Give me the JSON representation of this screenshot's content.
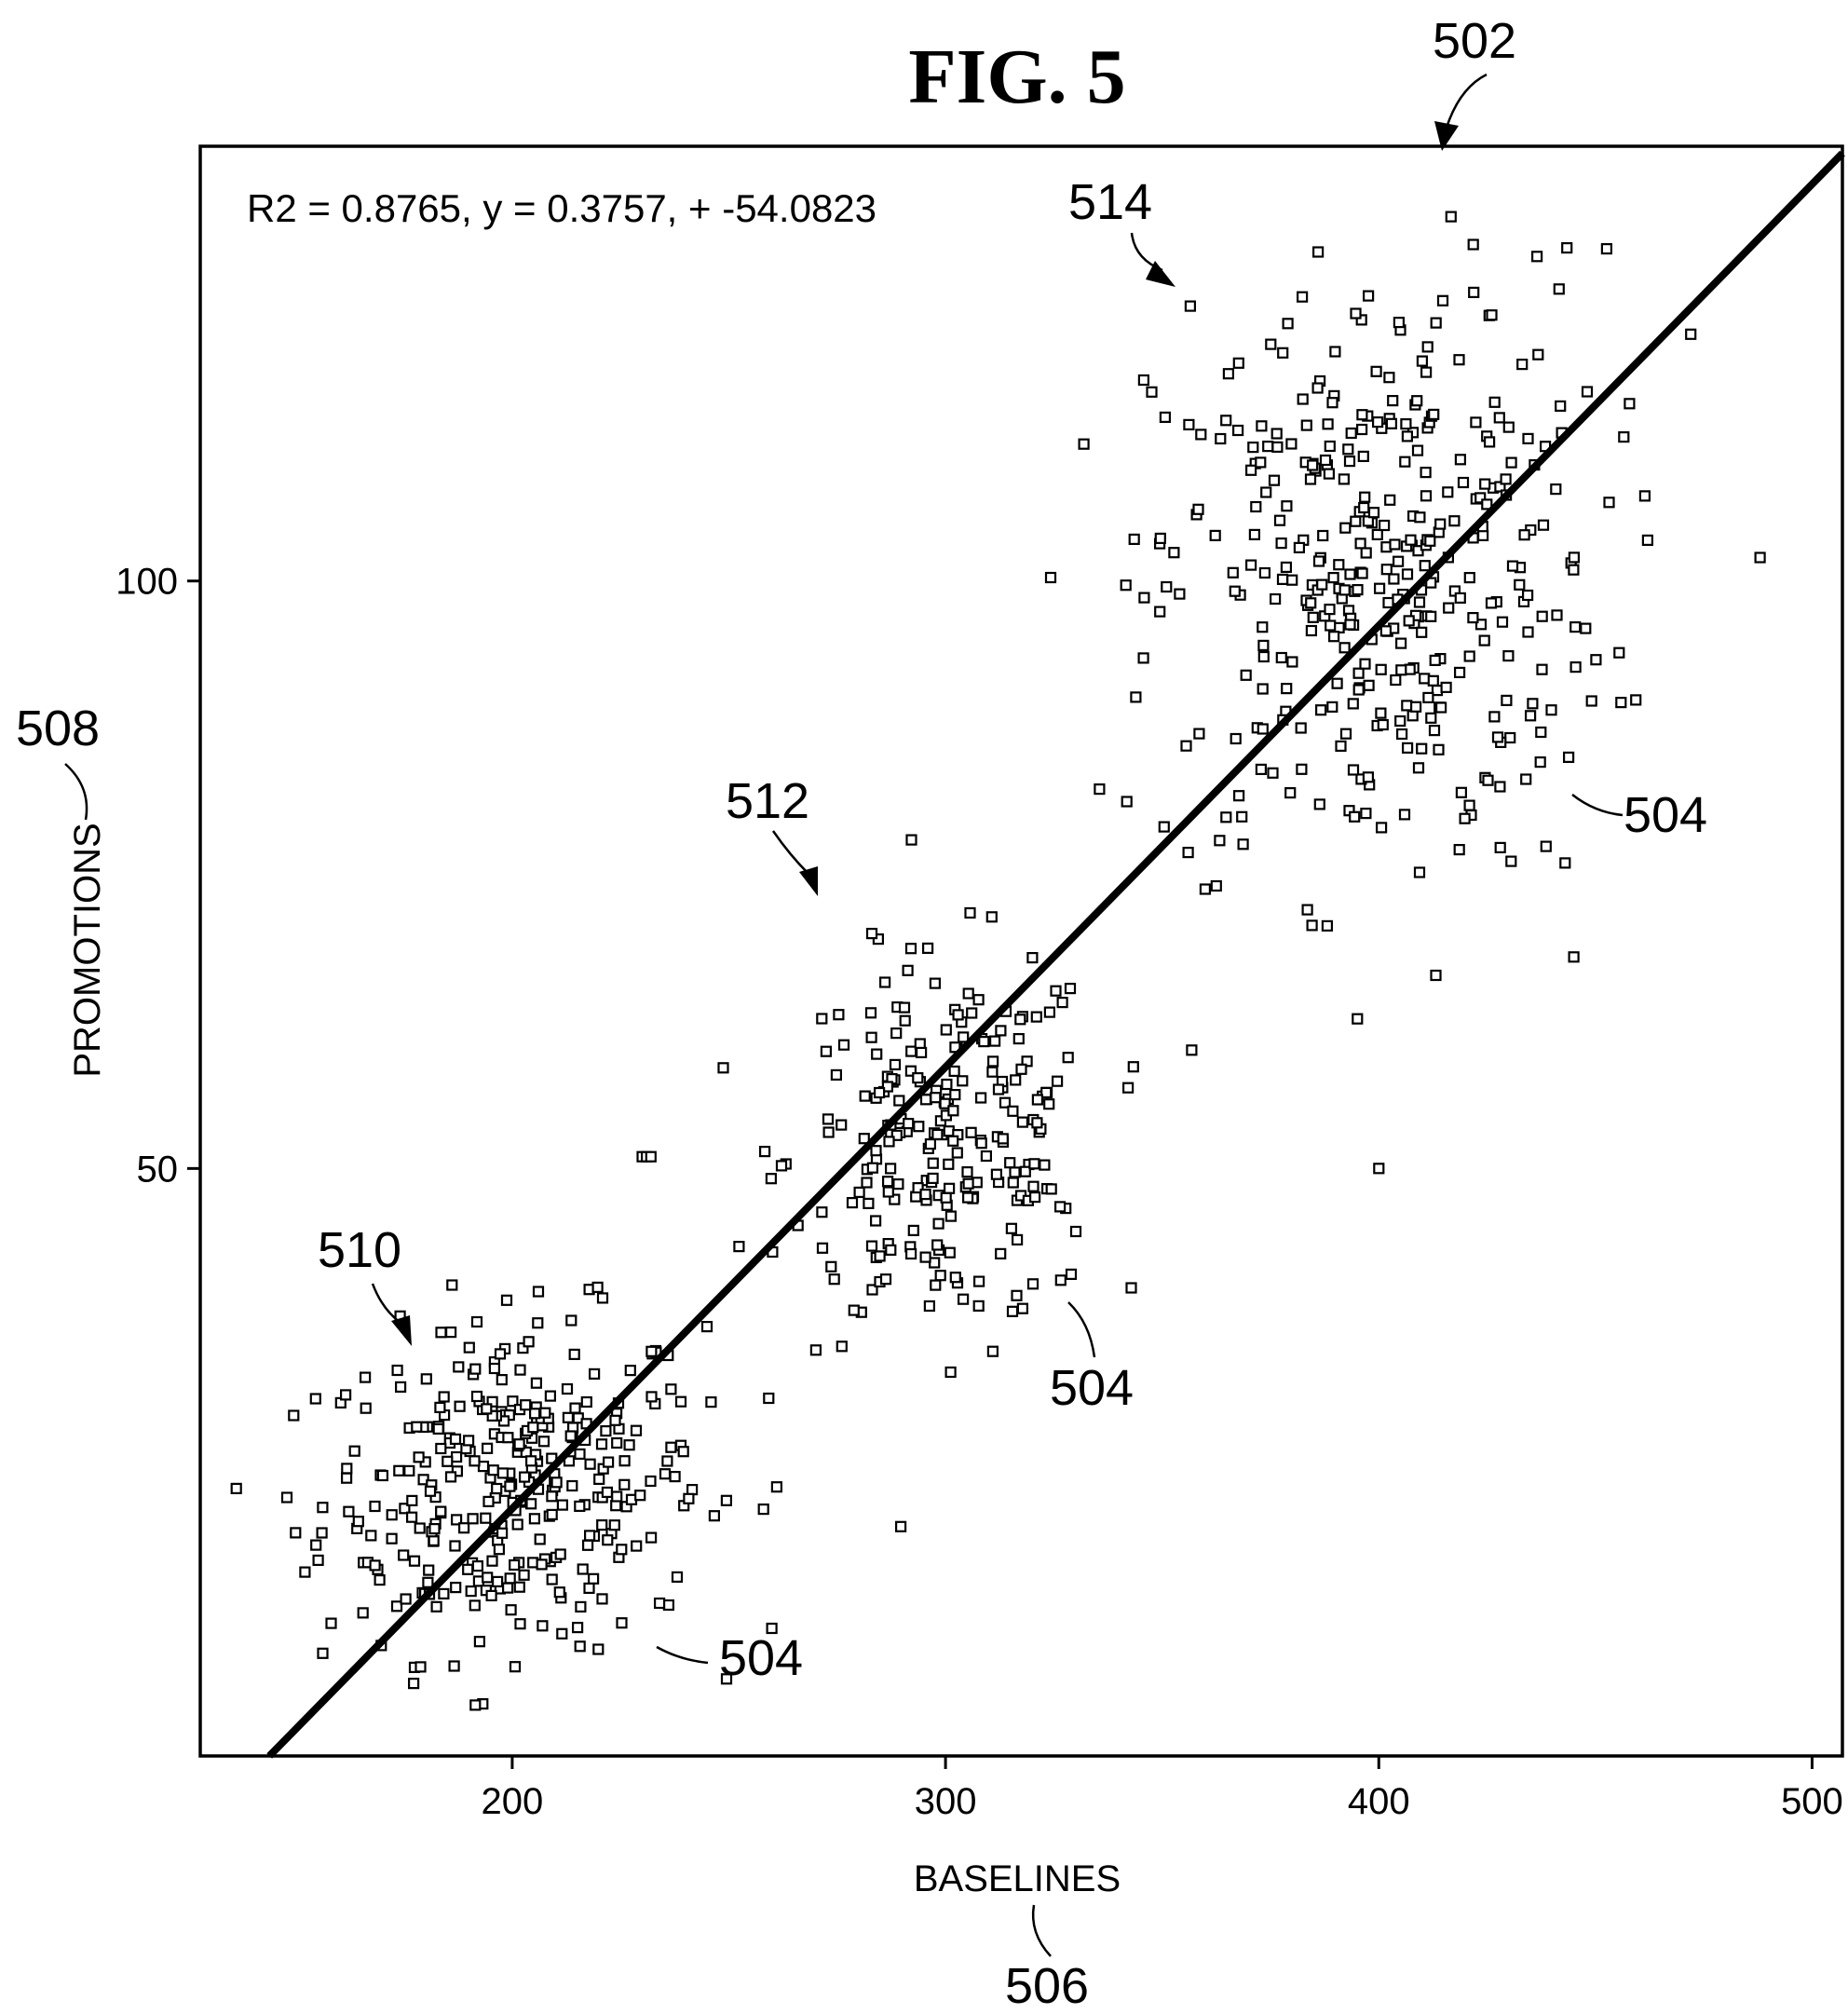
{
  "figure": {
    "title": "FIG. 5",
    "equation": "R2 = 0.8765, y = 0.3757, + -54.0823",
    "reference_labels": {
      "chart": "502",
      "point_a": "504",
      "point_b": "504",
      "point_c": "504",
      "x_axis": "506",
      "y_axis": "508",
      "cluster_low": "510",
      "cluster_mid": "512",
      "cluster_high": "514"
    }
  },
  "chart_data": {
    "type": "scatter",
    "title": "",
    "xlabel": "BASELINES",
    "ylabel": "PROMOTIONS",
    "xlim": [
      128,
      507
    ],
    "ylim": [
      0,
      137
    ],
    "xticks": [
      200,
      300,
      400,
      500
    ],
    "yticks": [
      50,
      100
    ],
    "grid": false,
    "legend": "none",
    "marker": "hollow-square",
    "fit_line": {
      "slope": 0.3757,
      "intercept": -54.0823,
      "r2": 0.8765
    },
    "clusters": [
      {
        "center": [
          200,
          23
        ],
        "spread": [
          22,
          7
        ],
        "count": 330
      },
      {
        "center": [
          300,
          52
        ],
        "spread": [
          18,
          8
        ],
        "count": 240
      },
      {
        "center": [
          400,
          100
        ],
        "spread": [
          26,
          13
        ],
        "count": 390
      }
    ],
    "points": [
      [
        234,
        13
      ],
      [
        329,
        41
      ],
      [
        443,
        76
      ],
      [
        400,
        50
      ],
      [
        445,
        68
      ],
      [
        488,
        102
      ],
      [
        472,
        121
      ],
      [
        386,
        128
      ],
      [
        283,
        70
      ],
      [
        230,
        51
      ],
      [
        231,
        51
      ],
      [
        232,
        51
      ],
      [
        148,
        22
      ],
      [
        150,
        19
      ],
      [
        258,
        21
      ]
    ]
  }
}
